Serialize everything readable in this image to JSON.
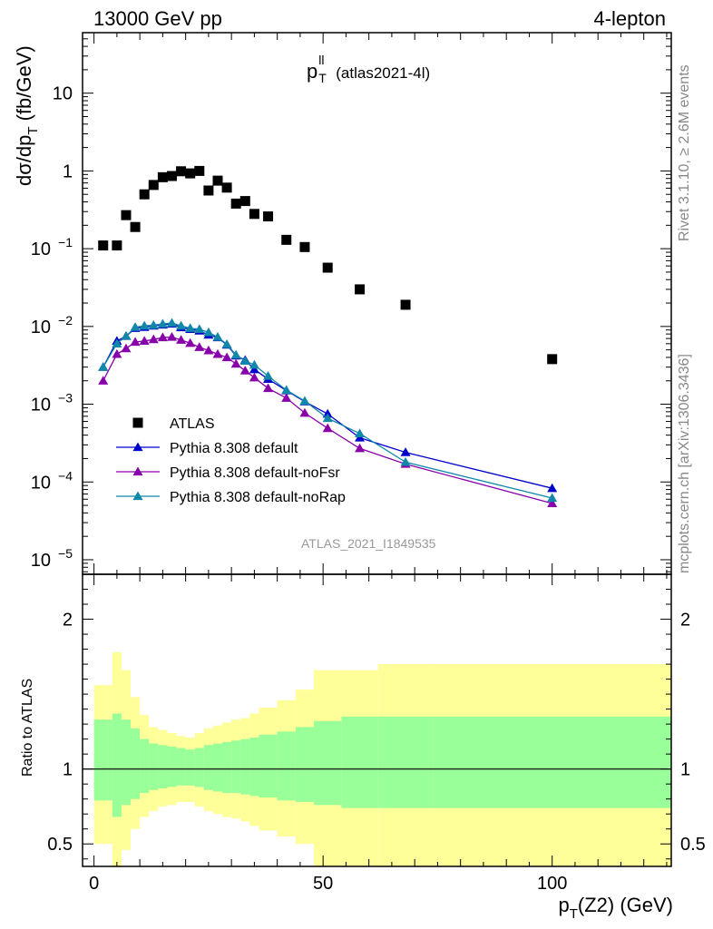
{
  "header": {
    "energy_label": "13000 GeV pp",
    "channel_label": "4-lepton"
  },
  "side_labels": {
    "rivet": "Rivet 3.1.10, ≥ 2.6M events",
    "mcplots": "mcplots.cern.ch [arXiv:1306.3436]"
  },
  "chart_data": [
    {
      "type": "scatter",
      "title_main": "p",
      "title_sup": "ll",
      "title_sub": "T",
      "title_suffix": "(atlas2021-4l)",
      "ylabel_main": "dσ/dp",
      "ylabel_sub": "T",
      "ylabel_suffix": "(fb/GeV)",
      "yscale": "log",
      "xlim": [
        -2.5,
        126
      ],
      "ylim": [
        6.5e-06,
        60
      ],
      "y_ticks": [
        {
          "v": 10,
          "m": "10",
          "e": ""
        },
        {
          "v": 1,
          "m": "1",
          "e": ""
        },
        {
          "v": 0.1,
          "m": "10",
          "e": "−1"
        },
        {
          "v": 0.01,
          "m": "10",
          "e": "−2"
        },
        {
          "v": 0.001,
          "m": "10",
          "e": "−3"
        },
        {
          "v": 0.0001,
          "m": "10",
          "e": "−4"
        },
        {
          "v": 1e-05,
          "m": "10",
          "e": "−5"
        }
      ],
      "watermark": "ATLAS_2021_I1849535",
      "legend_position": "lower-left",
      "series": [
        {
          "name": "ATLAS",
          "color": "#000000",
          "marker": "square",
          "x": [
            2,
            5,
            7,
            9,
            11,
            13,
            15,
            17,
            19,
            21,
            23,
            25,
            27,
            29,
            31,
            33,
            35,
            38,
            42,
            46,
            51,
            58,
            68,
            100
          ],
          "y": [
            0.11,
            0.11,
            0.27,
            0.19,
            0.5,
            0.66,
            0.83,
            0.86,
            0.99,
            0.93,
            1.0,
            0.56,
            0.75,
            0.61,
            0.38,
            0.41,
            0.28,
            0.26,
            0.13,
            0.105,
            0.057,
            0.03,
            0.019,
            0.0038
          ]
        },
        {
          "name": "Pythia 8.308 default",
          "color": "#0000cc",
          "marker": "triangle",
          "x": [
            2,
            5,
            7,
            9,
            11,
            13,
            15,
            17,
            19,
            21,
            23,
            25,
            27,
            29,
            31,
            33,
            35,
            38,
            42,
            46,
            51,
            58,
            68,
            100
          ],
          "y": [
            0.003,
            0.0065,
            0.0075,
            0.0095,
            0.0098,
            0.0102,
            0.0105,
            0.0108,
            0.0097,
            0.0092,
            0.0088,
            0.0078,
            0.0072,
            0.0058,
            0.0042,
            0.0037,
            0.0028,
            0.0021,
            0.0015,
            0.00108,
            0.00075,
            0.00037,
            0.00024,
            8.3e-05
          ]
        },
        {
          "name": "Pythia 8.308 default-noFsr",
          "color": "#8800aa",
          "marker": "triangle",
          "x": [
            2,
            5,
            7,
            9,
            11,
            13,
            15,
            17,
            19,
            21,
            23,
            25,
            27,
            29,
            31,
            33,
            35,
            38,
            42,
            46,
            51,
            58,
            68,
            100
          ],
          "y": [
            0.002,
            0.0044,
            0.0052,
            0.0063,
            0.0065,
            0.0068,
            0.0072,
            0.0073,
            0.0067,
            0.0061,
            0.0054,
            0.0049,
            0.0044,
            0.004,
            0.0033,
            0.0027,
            0.0022,
            0.0016,
            0.0012,
            0.00077,
            0.00049,
            0.00027,
            0.00017,
            5.3e-05
          ]
        },
        {
          "name": "Pythia 8.308 default-noRap",
          "color": "#1188aa",
          "marker": "triangle",
          "x": [
            2,
            5,
            7,
            9,
            11,
            13,
            15,
            17,
            19,
            21,
            23,
            25,
            27,
            29,
            31,
            33,
            35,
            38,
            42,
            46,
            51,
            58,
            68,
            100
          ],
          "y": [
            0.003,
            0.006,
            0.0075,
            0.0098,
            0.0102,
            0.0104,
            0.0108,
            0.0111,
            0.0102,
            0.0095,
            0.0092,
            0.0084,
            0.0073,
            0.0059,
            0.0043,
            0.0036,
            0.0032,
            0.0023,
            0.00152,
            0.0011,
            0.00066,
            0.00042,
            0.00018,
            6.2e-05
          ]
        }
      ]
    },
    {
      "type": "area",
      "ylabel": "Ratio to ATLAS",
      "xlabel_main": "p",
      "xlabel_sub": "T",
      "xlabel_suffix": "(Z2) (GeV)",
      "xlim": [
        -2.5,
        126
      ],
      "ylim": [
        0.35,
        2.3
      ],
      "x_ticks": [
        0,
        50,
        100
      ],
      "y_ticks": [
        0.5,
        1,
        2
      ],
      "reference_line": 1,
      "bin_edges": [
        0,
        3,
        4,
        6,
        8,
        10,
        12,
        14,
        16,
        18,
        20,
        22,
        24,
        26,
        28,
        30,
        32,
        34,
        36,
        40,
        44,
        48,
        54,
        62,
        74,
        126
      ],
      "band_outer": {
        "color": "#ffff99",
        "upper": [
          1.56,
          1.56,
          1.78,
          1.66,
          1.48,
          1.36,
          1.28,
          1.26,
          1.24,
          1.22,
          1.21,
          1.24,
          1.27,
          1.29,
          1.31,
          1.33,
          1.34,
          1.37,
          1.41,
          1.46,
          1.53,
          1.66,
          1.66,
          1.7,
          1.7
        ],
        "lower": [
          0.5,
          0.5,
          0.3,
          0.46,
          0.6,
          0.68,
          0.72,
          0.75,
          0.76,
          0.78,
          0.78,
          0.75,
          0.72,
          0.7,
          0.68,
          0.67,
          0.65,
          0.62,
          0.59,
          0.55,
          0.5,
          0.35,
          0.35,
          0.33,
          0.33
        ]
      },
      "band_inner": {
        "color": "#99ff99",
        "upper": [
          1.33,
          1.33,
          1.37,
          1.33,
          1.27,
          1.2,
          1.17,
          1.16,
          1.15,
          1.14,
          1.13,
          1.14,
          1.16,
          1.17,
          1.18,
          1.19,
          1.2,
          1.21,
          1.23,
          1.25,
          1.28,
          1.32,
          1.35,
          1.35,
          1.35
        ],
        "lower": [
          0.79,
          0.79,
          0.68,
          0.76,
          0.8,
          0.84,
          0.86,
          0.87,
          0.88,
          0.89,
          0.89,
          0.88,
          0.86,
          0.85,
          0.84,
          0.84,
          0.83,
          0.82,
          0.81,
          0.79,
          0.78,
          0.76,
          0.74,
          0.74,
          0.74
        ]
      }
    }
  ]
}
